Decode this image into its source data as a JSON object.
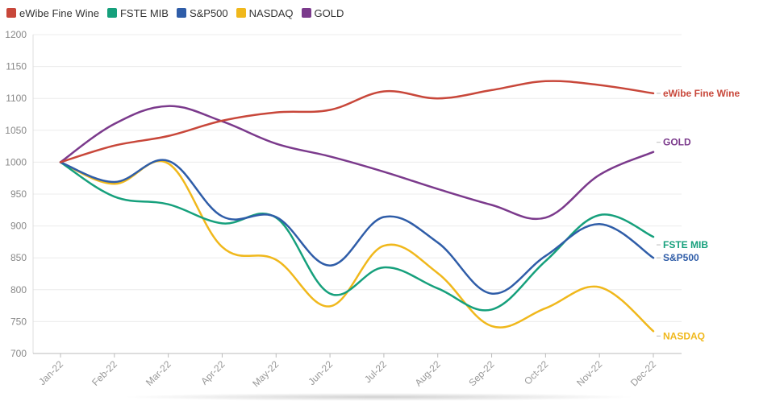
{
  "chart_data": {
    "type": "line",
    "title": "",
    "xlabel": "",
    "ylabel": "",
    "categories": [
      "Jan-22",
      "Feb-22",
      "Mar-22",
      "Apr-22",
      "May-22",
      "Jun-22",
      "Jul-22",
      "Aug-22",
      "Sep-22",
      "Oct-22",
      "Nov-22",
      "Dec-22"
    ],
    "ylim": [
      700,
      1200
    ],
    "yticks": [
      "700",
      "750",
      "800",
      "850",
      "900",
      "950",
      "1000",
      "1050",
      "1100",
      "1150",
      "1200"
    ],
    "grid": true,
    "legend_placement": "top-left",
    "series": [
      {
        "name": "eWibe Fine Wine",
        "color": "#C8473A",
        "values": [
          1000,
          1026,
          1041,
          1065,
          1078,
          1082,
          1111,
          1100,
          1113,
          1127,
          1121,
          1108
        ]
      },
      {
        "name": "FSTE MIB",
        "color": "#16A07C",
        "values": [
          1000,
          946,
          934,
          904,
          913,
          794,
          835,
          802,
          769,
          845,
          917,
          883
        ]
      },
      {
        "name": "S&P500",
        "color": "#2F5DA8",
        "values": [
          1000,
          969,
          1002,
          915,
          914,
          838,
          914,
          874,
          794,
          853,
          903,
          850
        ]
      },
      {
        "name": "NASDAQ",
        "color": "#F0B81C",
        "values": [
          1000,
          966,
          998,
          867,
          847,
          774,
          869,
          826,
          743,
          771,
          804,
          735
        ]
      },
      {
        "name": "GOLD",
        "color": "#7B3A8C",
        "values": [
          1000,
          1060,
          1088,
          1064,
          1029,
          1009,
          985,
          958,
          933,
          913,
          980,
          1016
        ]
      }
    ]
  }
}
